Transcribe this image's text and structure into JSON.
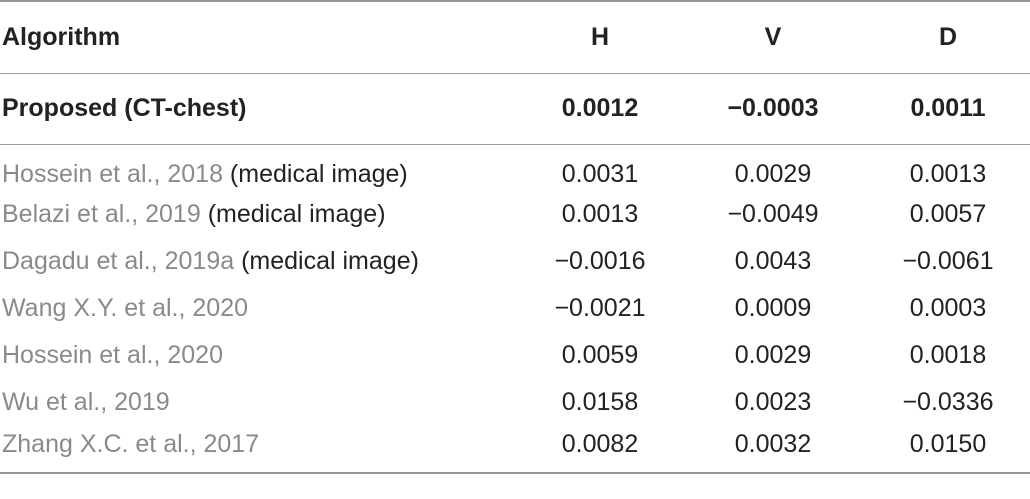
{
  "columns": {
    "algorithm": "Algorithm",
    "h": "H",
    "v": "V",
    "d": "D"
  },
  "proposed": {
    "algorithm": "Proposed (CT-chest)",
    "h": "0.0012",
    "v": "−0.0003",
    "d": "0.0011"
  },
  "rows": [
    {
      "cite": "Hossein et al., 2018",
      "note": " (medical image)",
      "h": "0.0031",
      "v": "0.0029",
      "d": "0.0013"
    },
    {
      "cite": "Belazi et al., 2019",
      "note": " (medical image)",
      "h": "0.0013",
      "v": "−0.0049",
      "d": "0.0057"
    },
    {
      "cite": "Dagadu et al., 2019a",
      "note": " (medical image)",
      "h": "−0.0016",
      "v": "0.0043",
      "d": "−0.0061"
    },
    {
      "cite": "Wang X.Y. et al., 2020",
      "note": "",
      "h": "−0.0021",
      "v": "0.0009",
      "d": "0.0003"
    },
    {
      "cite": "Hossein et al., 2020",
      "note": "",
      "h": "0.0059",
      "v": "0.0029",
      "d": "0.0018"
    },
    {
      "cite": "Wu et al., 2019",
      "note": "",
      "h": "0.0158",
      "v": "0.0023",
      "d": "−0.0336"
    },
    {
      "cite": "Zhang X.C. et al., 2017",
      "note": "",
      "h": "0.0082",
      "v": "0.0032",
      "d": "0.0150"
    }
  ]
}
